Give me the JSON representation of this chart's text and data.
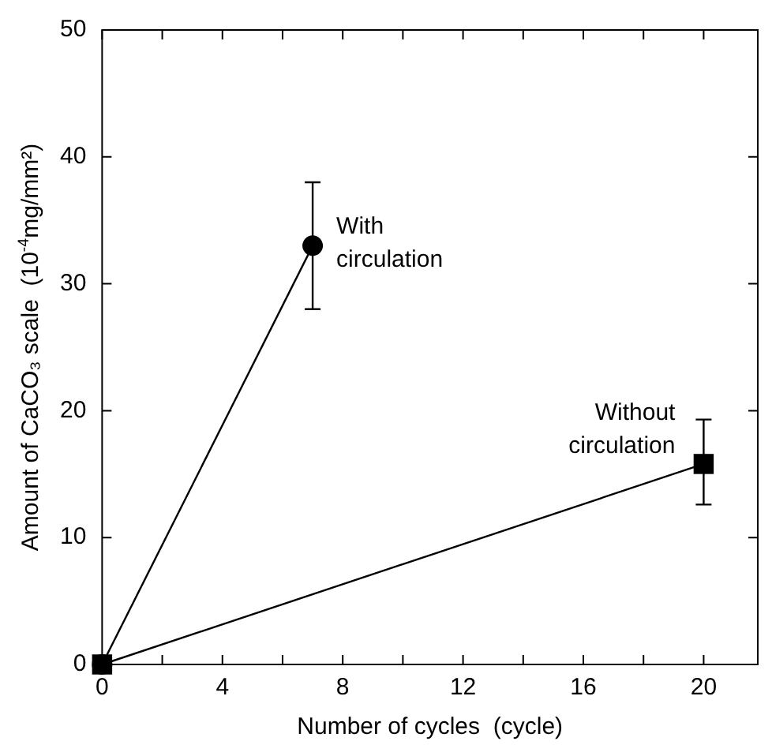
{
  "chart_data": {
    "type": "line",
    "xlabel": "Number of cycles  (cycle)",
    "ylabel": "Amount of CaCO₃ scale  (10$^{-4}$mg/mm²)",
    "xlim": [
      0,
      21.8
    ],
    "ylim": [
      0,
      50
    ],
    "xticks": [
      0,
      {
        "value": 2,
        "label": null
      },
      4,
      {
        "value": 6,
        "label": null
      },
      8,
      {
        "value": 10,
        "label": null
      },
      12,
      {
        "value": 14,
        "label": null
      },
      16,
      {
        "value": 18,
        "label": null
      },
      20
    ],
    "yticks": [
      0,
      10,
      20,
      30,
      40,
      50
    ],
    "grid": false,
    "legend": false,
    "series": [
      {
        "name": "With circulation",
        "color": "#000000",
        "marker": "circle",
        "x": [
          0,
          7
        ],
        "values": [
          0,
          33
        ],
        "errors": [
          null,
          [
            28,
            38
          ]
        ]
      },
      {
        "name": "Without circulation",
        "color": "#000000",
        "marker": "square",
        "x": [
          0,
          20
        ],
        "values": [
          0,
          15.8
        ],
        "errors": [
          null,
          [
            12.6,
            19.3
          ]
        ]
      }
    ]
  }
}
